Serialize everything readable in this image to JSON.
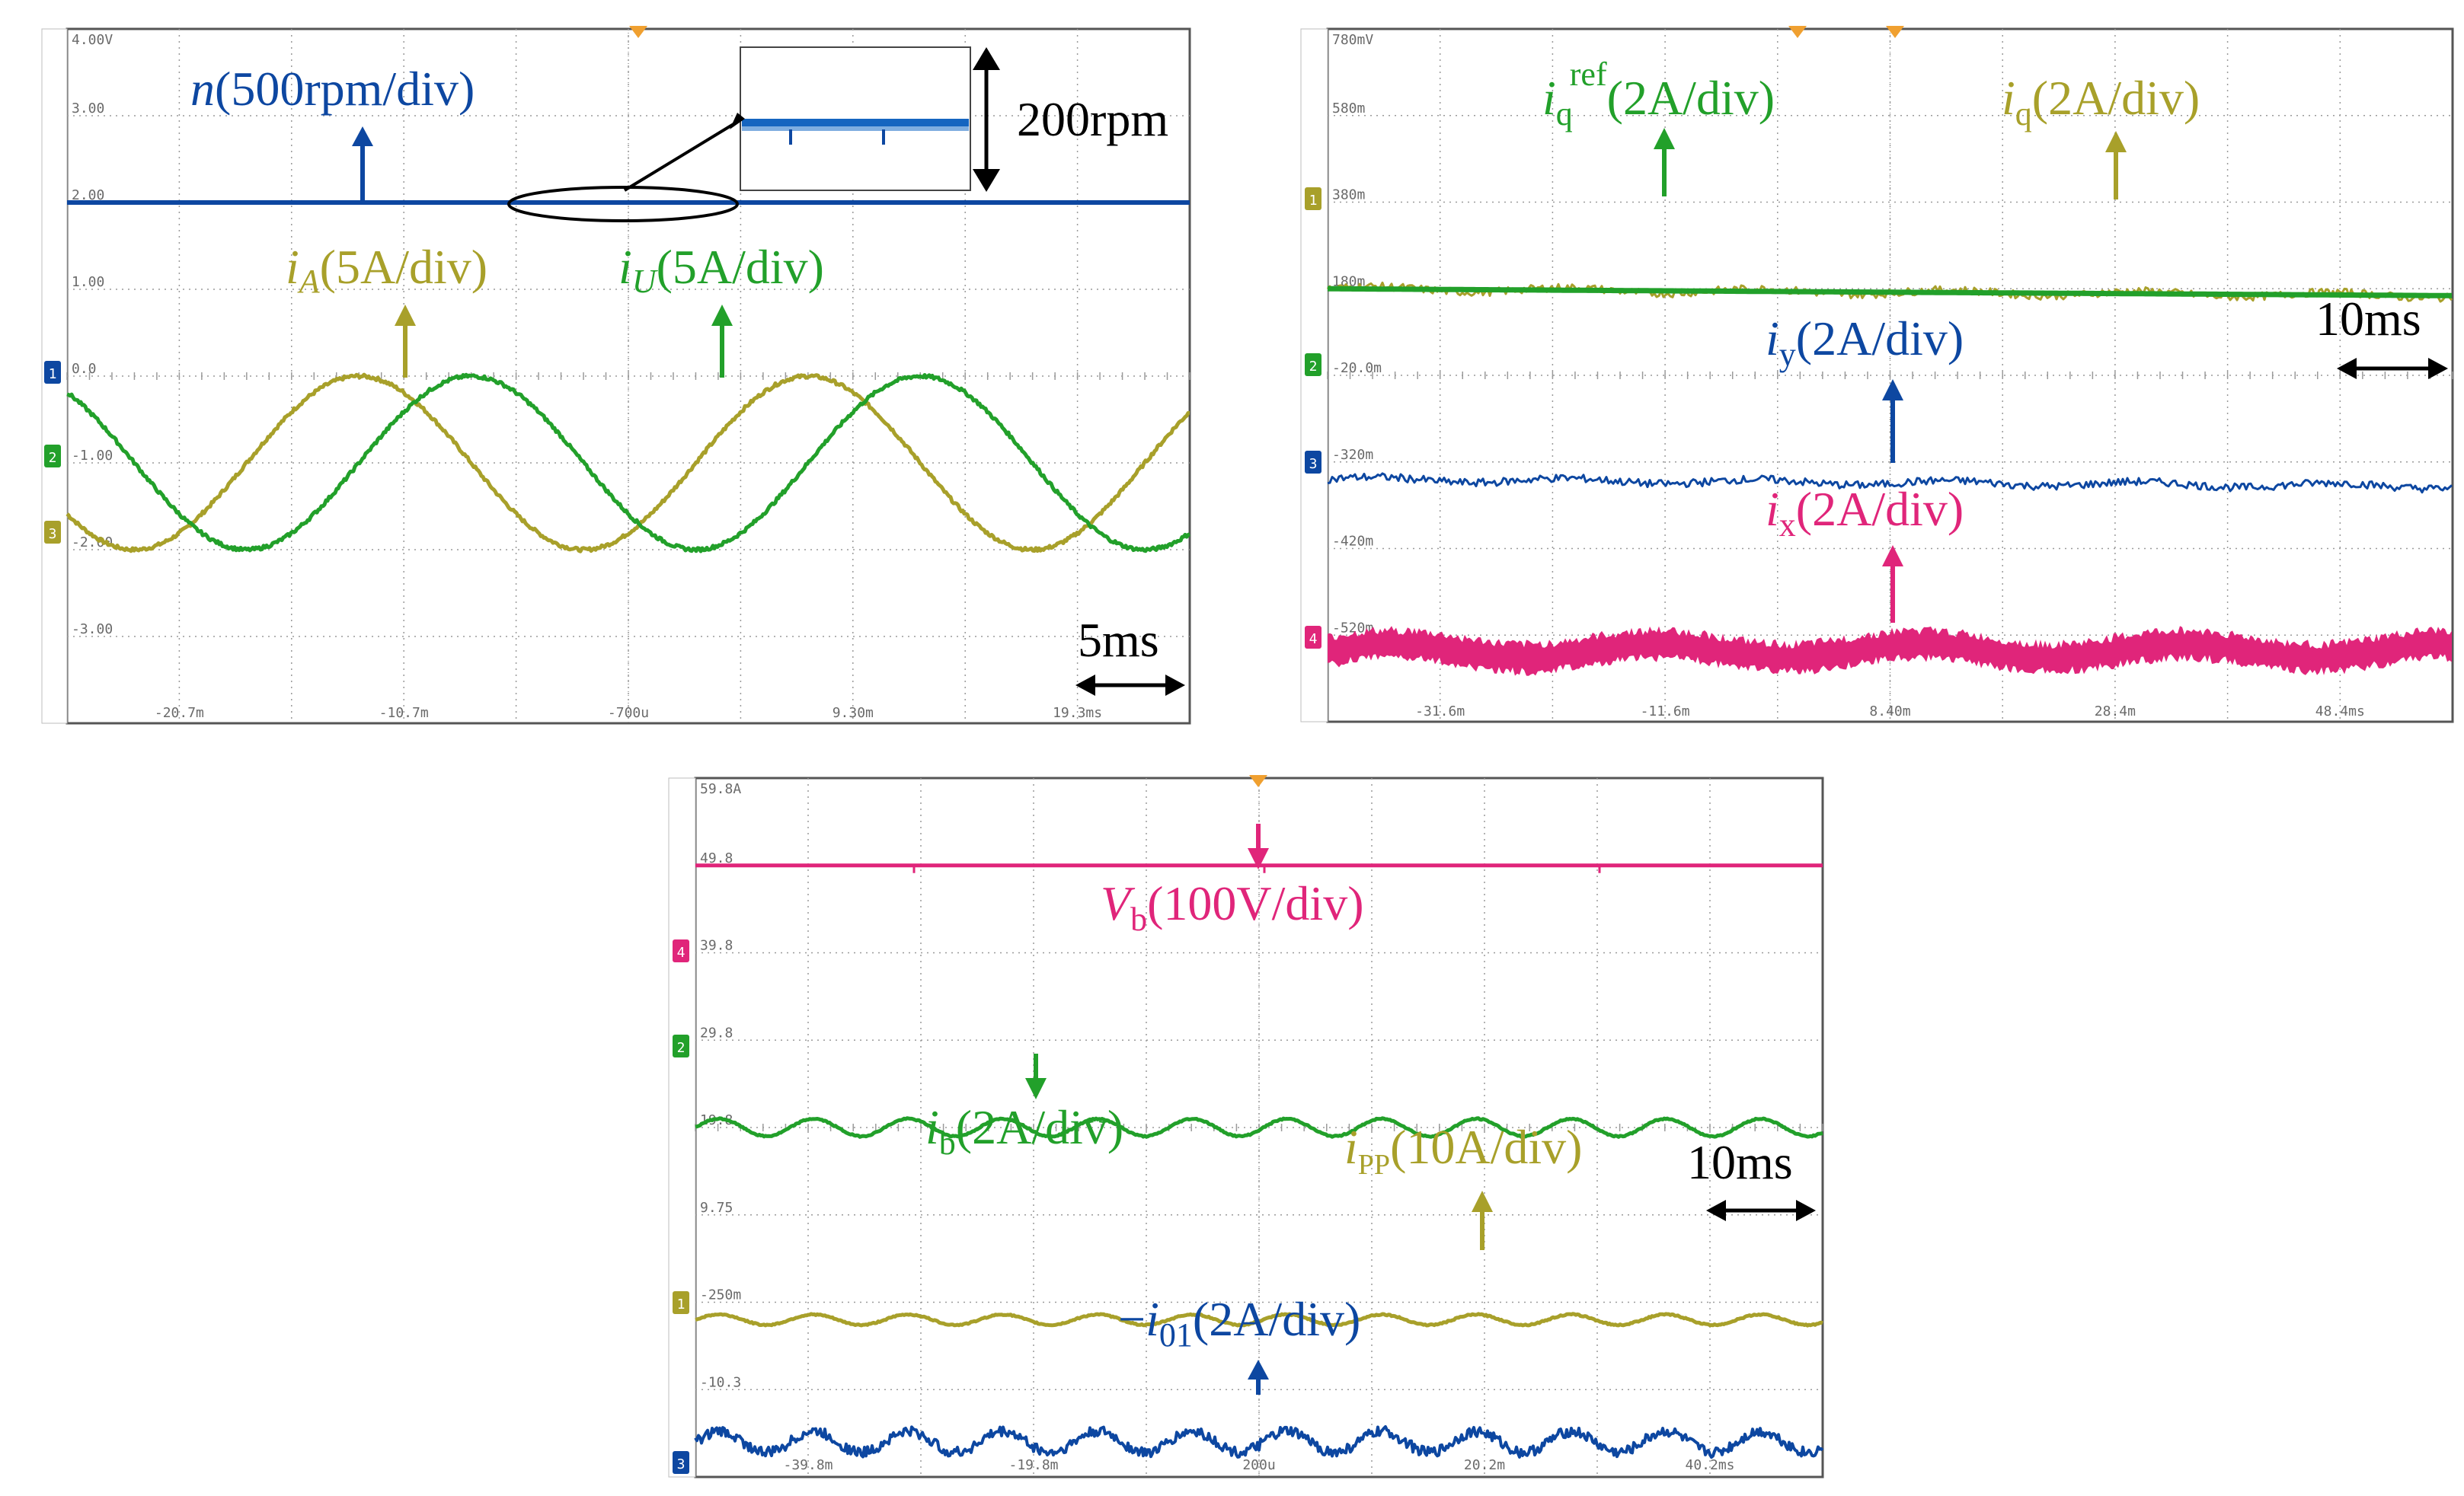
{
  "figure": {
    "colors": {
      "grid": "#9a9a9a",
      "frame": "#555555",
      "tick_text": "#6a6a6a",
      "blue": "#0d47a1",
      "olive": "#a8a02a",
      "green": "#22a02a",
      "magenta": "#e0257a",
      "black": "#000000"
    },
    "panels": [
      {
        "id": "a",
        "y_ticks": [
          "4.00V",
          "3.00",
          "2.00",
          "1.00",
          "0.0",
          "-1.00",
          "-2.00",
          "-3.00"
        ],
        "x_ticks": [
          "-20.7m",
          "-10.7m",
          "-700u",
          "9.30m",
          "19.3ms"
        ],
        "channel_markers": [
          "1",
          "2",
          "3"
        ],
        "labels": {
          "n": {
            "var": "n",
            "rest": "(500rpm/div)"
          },
          "iA": {
            "var": "i",
            "sub": "A",
            "rest": "(5A/div)"
          },
          "iU": {
            "var": "i",
            "sub": "U",
            "rest": "(5A/div)"
          }
        },
        "inset_label": "200rpm",
        "time_scale": "5ms"
      },
      {
        "id": "b",
        "y_ticks": [
          "780mV",
          "580m",
          "380m",
          "180m",
          "-20.0m",
          "-320m",
          "-420m",
          "-520m"
        ],
        "x_ticks": [
          "-31.6m",
          "-11.6m",
          "8.40m",
          "28.4m",
          "48.4ms"
        ],
        "channel_markers": [
          "1",
          "2",
          "3",
          "4"
        ],
        "labels": {
          "iqref": {
            "var": "i",
            "sub": "q",
            "sup": "ref",
            "rest": "(2A/div)"
          },
          "iq": {
            "var": "i",
            "sub": "q",
            "rest": "(2A/div)"
          },
          "iy": {
            "var": "i",
            "sub": "y",
            "rest": "(2A/div)"
          },
          "ix": {
            "var": "i",
            "sub": "x",
            "rest": "(2A/div)"
          }
        },
        "time_scale": "10ms"
      },
      {
        "id": "c",
        "y_ticks": [
          "59.8A",
          "49.8",
          "39.8",
          "29.8",
          "19.8",
          "9.75",
          "-250m",
          "-10.3"
        ],
        "x_ticks": [
          "-39.8m",
          "-19.8m",
          "200u",
          "20.2m",
          "40.2ms"
        ],
        "channel_markers": [
          "4",
          "2",
          "1",
          "3"
        ],
        "labels": {
          "Vb": {
            "var": "V",
            "sub": "b",
            "rest": "(100V/div)"
          },
          "ib": {
            "var": "i",
            "sub": "b",
            "rest": "(2A/div)"
          },
          "ipp": {
            "var": "i",
            "sub": "PP",
            "rest": "(10A/div)"
          },
          "i01": {
            "prefix": "−",
            "var": "i",
            "sub": "01",
            "rest": "(2A/div)"
          }
        },
        "time_scale": "10ms"
      }
    ]
  },
  "chart_data": [
    {
      "type": "line",
      "title": "",
      "series": [
        {
          "name": "n(500rpm/div)",
          "value_div": 2.0,
          "shape": "flat"
        },
        {
          "name": "iA(5A/div)",
          "amplitude_div": 1.0,
          "offset_div": -1.0,
          "period_ms": 20,
          "peak_time_ms": -12
        },
        {
          "name": "iU(5A/div)",
          "amplitude_div": 1.0,
          "offset_div": -1.0,
          "period_ms": 20,
          "peak_time_ms": -7
        }
      ],
      "time_per_div_ms": 5
    },
    {
      "type": "line",
      "title": "",
      "series": [
        {
          "name": "iq_ref(2A/div)",
          "value_div": 1.0,
          "shape": "flat"
        },
        {
          "name": "iq(2A/div)",
          "value_div": 1.0,
          "shape": "noisy-flat"
        },
        {
          "name": "iy(2A/div)",
          "value_div": -1.2,
          "shape": "noisy-flat"
        },
        {
          "name": "ix(2A/div)",
          "value_div": -3.2,
          "shape": "noisy-band"
        }
      ],
      "time_per_div_ms": 10
    },
    {
      "type": "line",
      "title": "",
      "series": [
        {
          "name": "Vb(100V/div)",
          "value_div": 3.0,
          "shape": "flat"
        },
        {
          "name": "ib(2A/div)",
          "value_div": 0.0,
          "ripple_period_ms": 8.4,
          "shape": "ripple"
        },
        {
          "name": "iPP(10A/div)",
          "value_div": -2.2,
          "ripple_period_ms": 8.4,
          "shape": "ripple"
        },
        {
          "name": "-i01(2A/div)",
          "value_div": -3.6,
          "ripple_period_ms": 8.4,
          "shape": "noisy-ripple"
        }
      ],
      "time_per_div_ms": 10
    }
  ]
}
